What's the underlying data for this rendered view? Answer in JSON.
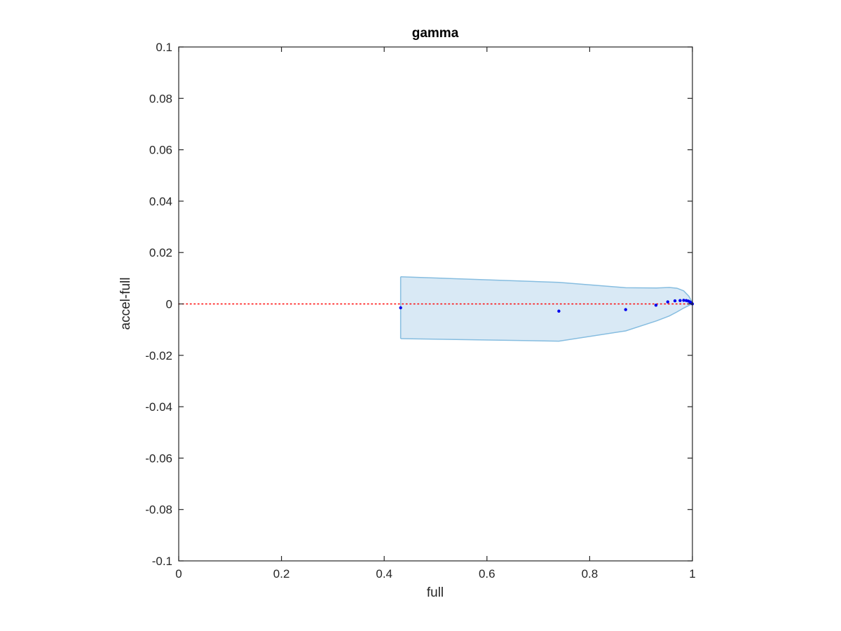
{
  "chart_data": {
    "type": "scatter",
    "title": "gamma",
    "xlabel": "full",
    "ylabel": "accel-full",
    "xlim": [
      0,
      1
    ],
    "ylim": [
      -0.1,
      0.1
    ],
    "x_ticks": [
      0,
      0.2,
      0.4,
      0.6,
      0.8,
      1
    ],
    "x_tick_labels": [
      "0",
      "0.2",
      "0.4",
      "0.6",
      "0.8",
      "1"
    ],
    "y_ticks": [
      -0.1,
      -0.08,
      -0.06,
      -0.04,
      -0.02,
      0,
      0.02,
      0.04,
      0.06,
      0.08,
      0.1
    ],
    "y_tick_labels": [
      "-0.1",
      "-0.08",
      "-0.06",
      "-0.04",
      "-0.02",
      "0",
      "0.02",
      "0.04",
      "0.06",
      "0.08",
      "0.1"
    ],
    "grid": false,
    "reference_line": {
      "y": 0,
      "style": "dotted",
      "color": "#ff0000"
    },
    "band": {
      "color": "#d9e9f5",
      "edge_color": "#86bde0",
      "upper": [
        [
          0.432,
          0.0106
        ],
        [
          0.74,
          0.0084
        ],
        [
          0.87,
          0.0063
        ],
        [
          0.93,
          0.0062
        ],
        [
          0.955,
          0.0064
        ],
        [
          0.97,
          0.0061
        ],
        [
          0.983,
          0.0051
        ],
        [
          0.993,
          0.003
        ],
        [
          0.998,
          0.0012
        ],
        [
          1.0,
          0.0003
        ]
      ],
      "lower": [
        [
          0.432,
          -0.0135
        ],
        [
          0.74,
          -0.0145
        ],
        [
          0.87,
          -0.0105
        ],
        [
          0.93,
          -0.0066
        ],
        [
          0.955,
          -0.0047
        ],
        [
          0.97,
          -0.0031
        ],
        [
          0.983,
          -0.0016
        ],
        [
          0.993,
          -0.0006
        ],
        [
          0.998,
          -0.0002
        ],
        [
          1.0,
          -0.0001
        ]
      ]
    },
    "points": {
      "color": "#0000ee",
      "x": [
        0.432,
        0.74,
        0.87,
        0.929,
        0.952,
        0.966,
        0.976,
        0.983,
        0.988,
        0.992,
        0.995,
        0.997,
        0.999,
        1.0
      ],
      "y": [
        -0.0015,
        -0.0028,
        -0.0022,
        -0.0005,
        0.0008,
        0.0012,
        0.0013,
        0.0014,
        0.0013,
        0.0011,
        0.0008,
        0.0005,
        0.0002,
        0.0
      ]
    }
  }
}
